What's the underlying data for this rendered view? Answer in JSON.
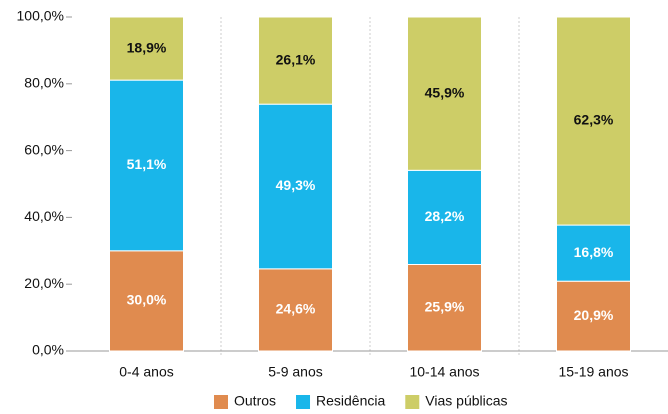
{
  "chart_data": {
    "type": "stacked_bar",
    "categories": [
      "0-4 anos",
      "5-9 anos",
      "10-14 anos",
      "15-19 anos"
    ],
    "series": [
      {
        "name": "Outros",
        "color": "#e08b4f",
        "values": [
          30.0,
          24.6,
          25.9,
          20.9
        ],
        "value_labels": [
          "30,0%",
          "24,6%",
          "25,9%",
          "20,9%"
        ]
      },
      {
        "name": "Residência",
        "color": "#19b6ea",
        "values": [
          51.1,
          49.3,
          28.2,
          16.8
        ],
        "value_labels": [
          "51,1%",
          "49,3%",
          "28,2%",
          "16,8%"
        ]
      },
      {
        "name": "Vias públicas",
        "color": "#cdcd67",
        "values": [
          18.9,
          26.1,
          45.9,
          62.3
        ],
        "value_labels": [
          "18,9%",
          "26,1%",
          "45,9%",
          "62,3%"
        ]
      }
    ],
    "ylim": [
      0,
      100
    ],
    "yticks": [
      {
        "value": 0,
        "label": "0,0%"
      },
      {
        "value": 20,
        "label": "20,0%"
      },
      {
        "value": 40,
        "label": "40,0%"
      },
      {
        "value": 60,
        "label": "60,0%"
      },
      {
        "value": 80,
        "label": "80,0%"
      },
      {
        "value": 100,
        "label": "100,0%"
      }
    ],
    "legend": "bottom"
  }
}
